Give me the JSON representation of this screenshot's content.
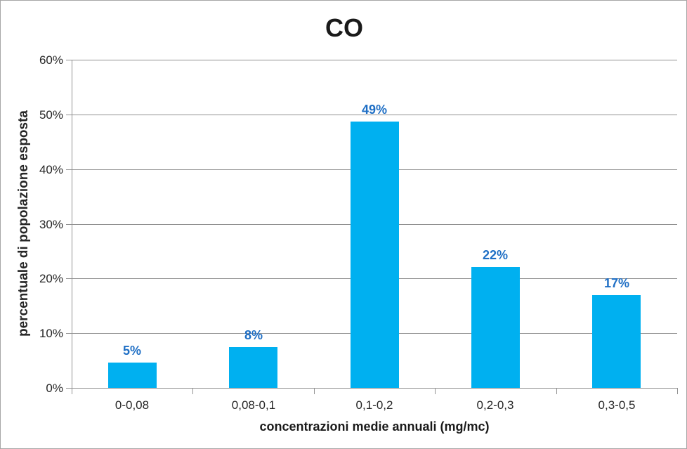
{
  "window": {
    "background": "#ffffff",
    "border_color": "#a6a6a6"
  },
  "chart_data": {
    "type": "bar",
    "title": "CO",
    "categories": [
      "0-0,08",
      "0,08-0,1",
      "0,1-0,2",
      "0,2-0,3",
      "0,3-0,5"
    ],
    "values": [
      4.6,
      7.5,
      48.7,
      22.1,
      16.9
    ],
    "data_labels": [
      "5%",
      "8%",
      "49%",
      "22%",
      "17%"
    ],
    "xlabel": "concentrazioni medie annuali (mg/mc)",
    "ylabel": "percentuale di popolazione esposta",
    "ylim": [
      0,
      60
    ],
    "ytick_step": 10,
    "ytick_labels": [
      "0%",
      "10%",
      "20%",
      "30%",
      "40%",
      "50%",
      "60%"
    ],
    "grid": "horizontal",
    "legend": "none",
    "colors": {
      "bar_fill": "#00b0f0",
      "data_label": "#1f6fc5",
      "gridline": "#919191",
      "axis_line": "#919191",
      "tick_label": "#262626",
      "title": "#1a1a1a"
    }
  }
}
